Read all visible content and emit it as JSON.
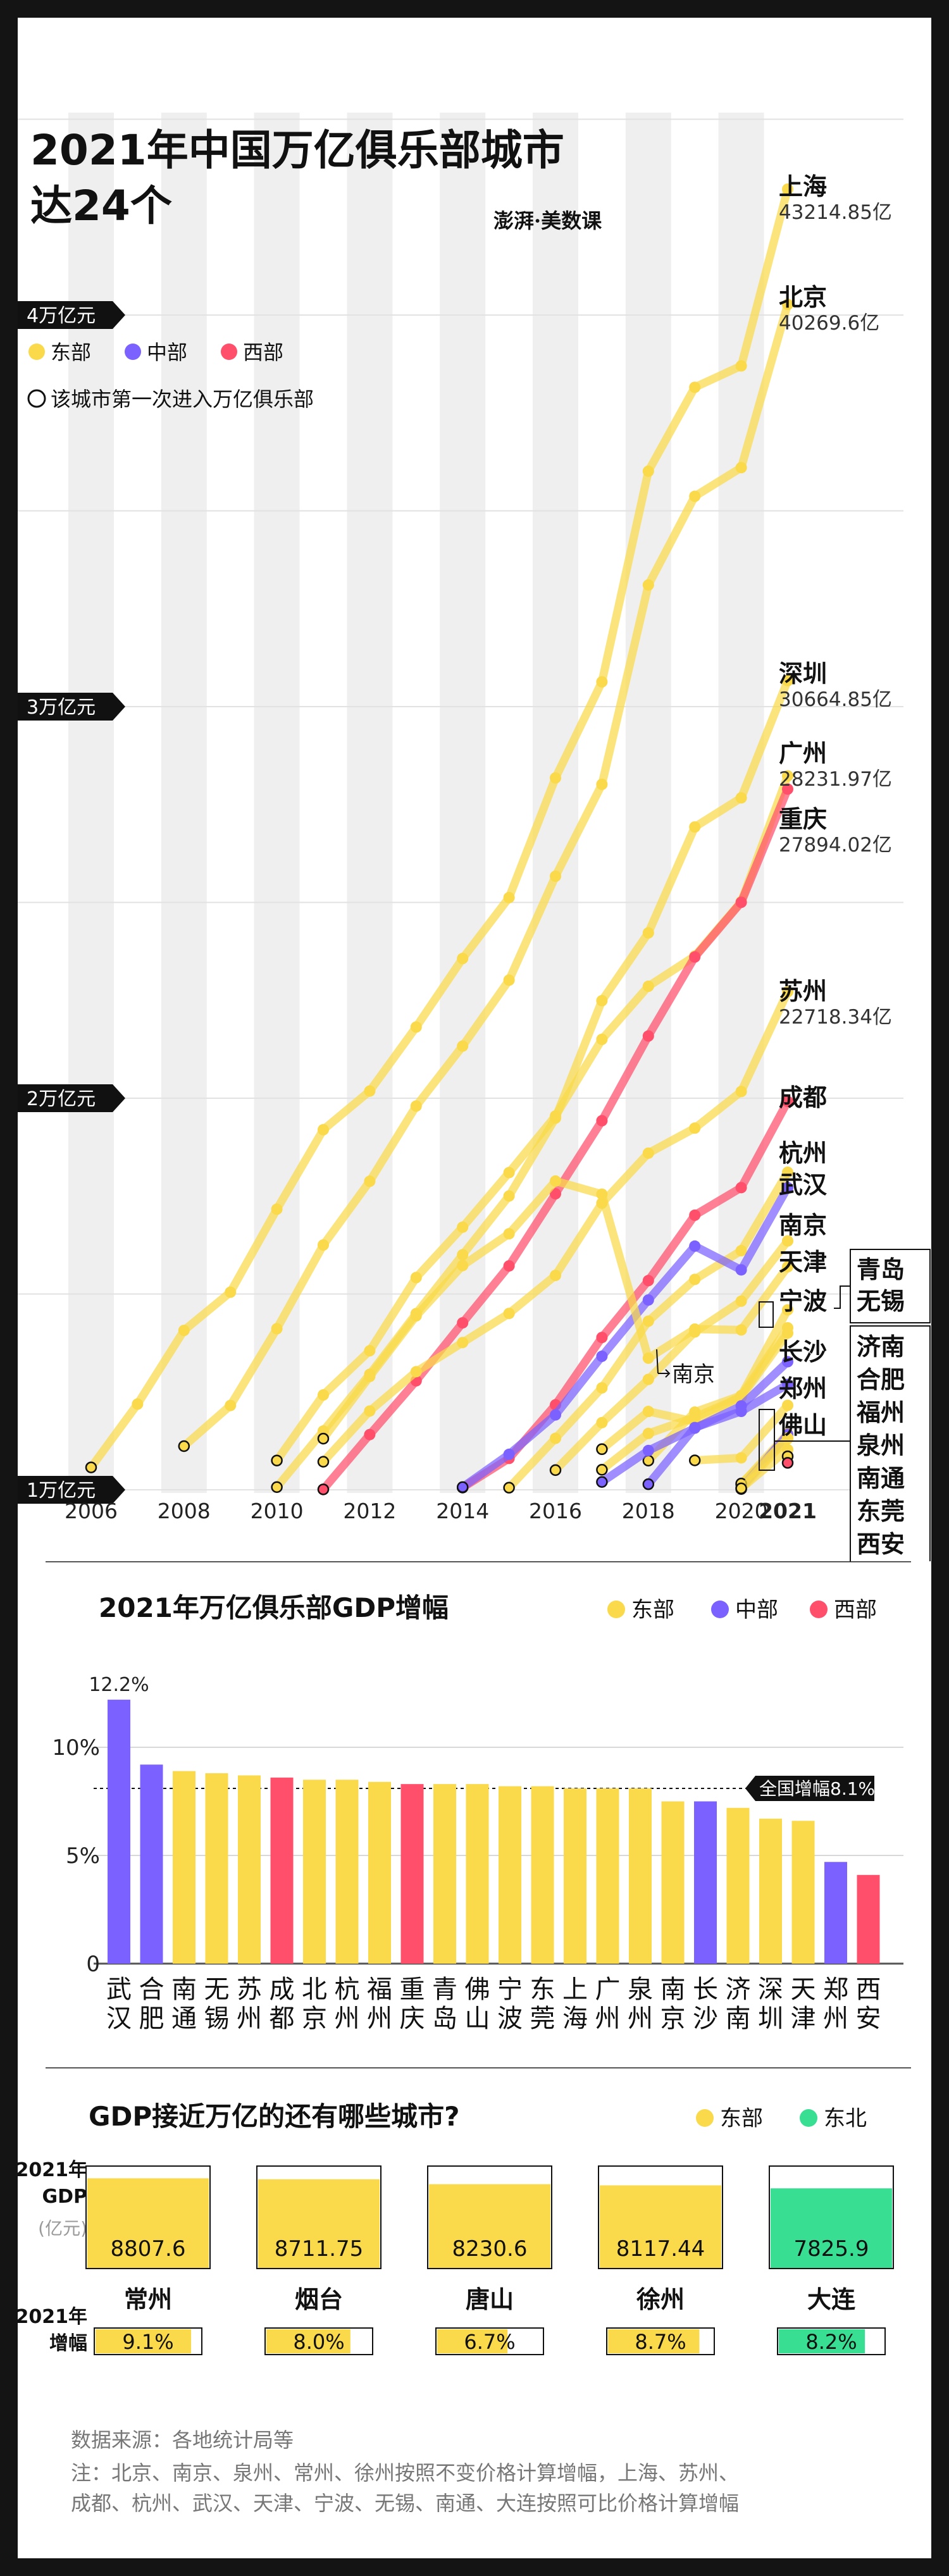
{
  "title_line1": "2021年中国万亿俱乐部城市",
  "title_line2": "达24个",
  "brand": "澎湃·美数课",
  "colors": {
    "east": "#FAD94A",
    "central": "#7B61FF",
    "west": "#FF4F6B",
    "northeast": "#38DF93"
  },
  "legend1": {
    "east": "东部",
    "central": "中部",
    "west": "西部",
    "first_entry": "该城市第一次进入万亿俱乐部"
  },
  "chart_data": [
    {
      "type": "line",
      "y_unit": "亿元",
      "ylim": [
        10000,
        46000
      ],
      "y_ticks": [
        {
          "value": 10000,
          "label": "1万亿元"
        },
        {
          "value": 20000,
          "label": "2万亿元"
        },
        {
          "value": 30000,
          "label": "3万亿元"
        },
        {
          "value": 40000,
          "label": "4万亿元"
        }
      ],
      "x_ticks": [
        "2006",
        "2008",
        "2010",
        "2012",
        "2014",
        "2016",
        "2018",
        "2020",
        "2021"
      ],
      "series": [
        {
          "name": "上海",
          "region": "east",
          "value_label": "43214.85亿",
          "start": 2006,
          "first_entry": 2006,
          "values": [
            10572,
            12189,
            14070,
            15046,
            17166,
            19196,
            20182,
            21818,
            23568,
            25123,
            28179,
            30633,
            36012,
            38155,
            38701,
            43214.85
          ]
        },
        {
          "name": "北京",
          "region": "east",
          "value_label": "40269.6亿",
          "start": 2008,
          "first_entry": 2008,
          "values": [
            11115,
            12153,
            14114,
            16252,
            17879,
            19800,
            21331,
            23015,
            25669,
            28015,
            33106,
            35371,
            36103,
            40269.6
          ]
        },
        {
          "name": "深圳",
          "region": "east",
          "value_label": "30664.85亿",
          "start": 2010,
          "first_entry": 2010,
          "values": [
            10069,
            11502,
            12950,
            14500,
            16002,
            17503,
            19493,
            22490,
            24222,
            26927,
            27670,
            30664.85
          ]
        },
        {
          "name": "广州",
          "region": "east",
          "value_label": "28231.97亿",
          "start": 2010,
          "first_entry": 2010,
          "values": [
            10748,
            12423,
            13551,
            15420,
            16707,
            18100,
            19547,
            21503,
            22859,
            23629,
            25019,
            28231.97
          ]
        },
        {
          "name": "重庆",
          "region": "west",
          "value_label": "27894.02亿",
          "start": 2011,
          "first_entry": 2011,
          "values": [
            10011,
            11410,
            12783,
            14263,
            15717,
            17559,
            19425,
            21589,
            23606,
            25003,
            27894.02
          ]
        },
        {
          "name": "苏州",
          "region": "east",
          "value_label": "22718.34亿",
          "start": 2011,
          "first_entry": 2011,
          "values": [
            10717,
            12012,
            13016,
            13761,
            14504,
            15475,
            17320,
            18597,
            19236,
            20171,
            22718.34
          ]
        },
        {
          "name": "成都",
          "region": "west",
          "value_label": "",
          "start": 2014,
          "first_entry": 2014,
          "values": [
            10057,
            10801,
            12170,
            13890,
            15343,
            17013,
            17717,
            19917
          ]
        },
        {
          "name": "杭州",
          "region": "east",
          "value_label": "",
          "start": 2015,
          "first_entry": 2015,
          "values": [
            10054,
            11314,
            12603,
            14307,
            15373,
            16106,
            18109
          ]
        },
        {
          "name": "武汉",
          "region": "central",
          "value_label": "",
          "start": 2014,
          "first_entry": 2014,
          "values": [
            10069,
            10906,
            11913,
            13410,
            14847,
            16223,
            15616,
            17717
          ]
        },
        {
          "name": "南京",
          "region": "east",
          "value_label": "",
          "start": 2016,
          "first_entry": 2016,
          "values": [
            10503,
            11715,
            12820,
            14030,
            14818,
            16355
          ]
        },
        {
          "name": "天津",
          "region": "east",
          "value_label": "",
          "start": 2011,
          "first_entry": 2011,
          "values": [
            11307,
            12894,
            14442,
            15727,
            16538,
            17885,
            17549,
            13362,
            14104,
            14083,
            15695
          ]
        },
        {
          "name": "宁波",
          "region": "east",
          "value_label": "",
          "start": 2018,
          "first_entry": 2018,
          "values": [
            10745,
            11985,
            12409,
            14595
          ]
        },
        {
          "name": "青岛",
          "region": "east",
          "value_label": "",
          "start": 2017,
          "first_entry": 2017,
          "values": [
            11037,
            12001,
            11741,
            12400,
            14136
          ]
        },
        {
          "name": "无锡",
          "region": "east",
          "value_label": "",
          "start": 2017,
          "first_entry": 2017,
          "values": [
            10512,
            11439,
            11852,
            12370,
            14003
          ]
        },
        {
          "name": "长沙",
          "region": "central",
          "value_label": "",
          "start": 2017,
          "first_entry": 2017,
          "values": [
            10200,
            11003,
            11574,
            12143,
            13271
          ]
        },
        {
          "name": "郑州",
          "region": "central",
          "value_label": "",
          "start": 2018,
          "first_entry": 2018,
          "values": [
            10143,
            11590,
            12003,
            12691
          ]
        },
        {
          "name": "佛山",
          "region": "east",
          "value_label": "",
          "start": 2019,
          "first_entry": 2019,
          "values": [
            10751,
            10816,
            12157
          ]
        },
        {
          "name": "济南",
          "region": "east",
          "value_label": "",
          "start": 2020,
          "first_entry": 2020,
          "values": [
            10141,
            11432
          ]
        },
        {
          "name": "合肥",
          "region": "central",
          "value_label": "",
          "start": 2020,
          "first_entry": 2020,
          "values": [
            10046,
            11413
          ]
        },
        {
          "name": "福州",
          "region": "east",
          "value_label": "",
          "start": 2020,
          "first_entry": 2020,
          "values": [
            10020,
            11324
          ]
        },
        {
          "name": "泉州",
          "region": "east",
          "value_label": "",
          "start": 2020,
          "first_entry": 2020,
          "values": [
            10159,
            11304
          ]
        },
        {
          "name": "南通",
          "region": "east",
          "value_label": "",
          "start": 2020,
          "first_entry": 2020,
          "values": [
            10036,
            11027
          ]
        },
        {
          "name": "东莞",
          "region": "east",
          "value_label": "",
          "start": 2021,
          "first_entry": 2021,
          "values": [
            10855
          ]
        },
        {
          "name": "西安",
          "region": "west",
          "value_label": "",
          "start": 2021,
          "first_entry": 2021,
          "values": [
            10688
          ]
        }
      ],
      "annotations": [
        "南京"
      ],
      "boxed_groups": [
        [
          "青岛",
          "无锡"
        ],
        [
          "济南",
          "合肥",
          "福州",
          "泉州",
          "南通",
          "东莞",
          "西安"
        ]
      ]
    },
    {
      "type": "bar",
      "title": "2021年万亿俱乐部GDP增幅",
      "legend": {
        "east": "东部",
        "central": "中部",
        "west": "西部"
      },
      "ylim": [
        0,
        13
      ],
      "y_ticks": [
        {
          "value": 0,
          "label": "0"
        },
        {
          "value": 5,
          "label": "5%"
        },
        {
          "value": 10,
          "label": "10%"
        }
      ],
      "top_label": "12.2%",
      "reference": {
        "label": "全国增幅8.1%",
        "value": 8.1
      },
      "categories": [
        "武汉",
        "合肥",
        "南通",
        "无锡",
        "苏州",
        "成都",
        "北京",
        "杭州",
        "福州",
        "重庆",
        "青岛",
        "佛山",
        "宁波",
        "东莞",
        "上海",
        "广州",
        "泉州",
        "南京",
        "长沙",
        "济南",
        "深圳",
        "天津",
        "郑州",
        "西安"
      ],
      "regions": [
        "central",
        "central",
        "east",
        "east",
        "east",
        "west",
        "east",
        "east",
        "east",
        "west",
        "east",
        "east",
        "east",
        "east",
        "east",
        "east",
        "east",
        "east",
        "central",
        "east",
        "east",
        "east",
        "central",
        "west"
      ],
      "values": [
        12.2,
        9.2,
        8.9,
        8.8,
        8.7,
        8.6,
        8.5,
        8.5,
        8.4,
        8.3,
        8.3,
        8.3,
        8.2,
        8.2,
        8.1,
        8.1,
        8.1,
        7.5,
        7.5,
        7.2,
        6.7,
        6.6,
        4.7,
        4.1
      ]
    },
    {
      "type": "bar",
      "title": "GDP接近万亿的还有哪些城市?",
      "legend": {
        "east": "东部",
        "northeast": "东北"
      },
      "row1_label": "2021年\nGDP",
      "unit_label": "(亿元)",
      "row2_label": "2021年\n增幅",
      "cities": [
        {
          "name": "常州",
          "gdp": "8807.6",
          "gdp_value": 8807.6,
          "growth": "9.1%",
          "growth_value": 9.1,
          "region": "east"
        },
        {
          "name": "烟台",
          "gdp": "8711.75",
          "gdp_value": 8711.75,
          "growth": "8.0%",
          "growth_value": 8.0,
          "region": "east"
        },
        {
          "name": "唐山",
          "gdp": "8230.6",
          "gdp_value": 8230.6,
          "growth": "6.7%",
          "growth_value": 6.7,
          "region": "east"
        },
        {
          "name": "徐州",
          "gdp": "8117.44",
          "gdp_value": 8117.44,
          "growth": "8.7%",
          "growth_value": 8.7,
          "region": "east"
        },
        {
          "name": "大连",
          "gdp": "7825.9",
          "gdp_value": 7825.9,
          "growth": "8.2%",
          "growth_value": 8.2,
          "region": "northeast"
        }
      ]
    }
  ],
  "source_label": "数据来源：各地统计局等",
  "note": "注：北京、南京、泉州、常州、徐州按照不变价格计算增幅，上海、苏州、成都、杭州、武汉、天津、宁波、无锡、南通、大连按照可比价格计算增幅"
}
